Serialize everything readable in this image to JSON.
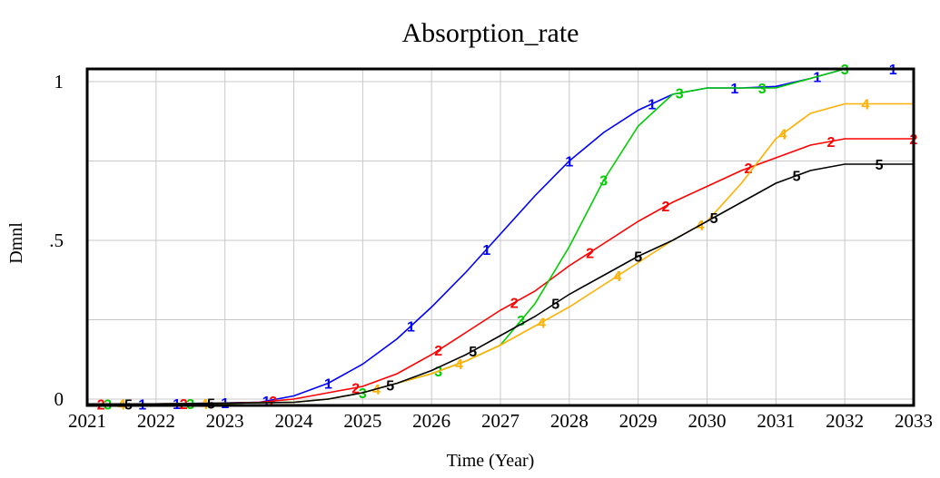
{
  "chart_data": {
    "type": "line",
    "title": "Absorption_rate",
    "xlabel": "Time (Year)",
    "ylabel": "Dmnl",
    "xlim": [
      2021,
      2033
    ],
    "ylim": [
      -0.02,
      1.04
    ],
    "x_ticks": [
      "2021",
      "2022",
      "2023",
      "2024",
      "2025",
      "2026",
      "2027",
      "2028",
      "2029",
      "2030",
      "2031",
      "2032",
      "2033"
    ],
    "y_ticks": [
      {
        "label": "0",
        "value": 0
      },
      {
        "label": ".5",
        "value": 0.5
      },
      {
        "label": "1",
        "value": 1
      }
    ],
    "grid": true,
    "legend": "none",
    "series": [
      {
        "name": "1",
        "color": "#0000ff",
        "x": [
          2021,
          2022,
          2023,
          2023.5,
          2024,
          2024.5,
          2025,
          2025.5,
          2026,
          2026.5,
          2027,
          2027.5,
          2028,
          2028.5,
          2029,
          2029.5,
          2030,
          2030.5,
          2031,
          2031.5,
          2032,
          2032.5,
          2033
        ],
        "y": [
          -0.015,
          -0.015,
          -0.012,
          -0.01,
          0.01,
          0.05,
          0.11,
          0.19,
          0.29,
          0.4,
          0.52,
          0.64,
          0.75,
          0.84,
          0.91,
          0.96,
          0.98,
          0.98,
          0.985,
          1.01,
          1.04,
          1.04,
          1.04
        ],
        "markers": [
          2021.8,
          2022.3,
          2023.0,
          2023.6,
          2024.5,
          2025.7,
          2026.8,
          2028.0,
          2029.2,
          2030.4,
          2031.6,
          2032.7
        ]
      },
      {
        "name": "2",
        "color": "#ff0000",
        "x": [
          2021,
          2022,
          2023,
          2023.5,
          2024,
          2024.5,
          2025,
          2025.5,
          2026,
          2026.5,
          2027,
          2027.5,
          2028,
          2028.5,
          2029,
          2029.5,
          2030,
          2030.5,
          2031,
          2031.5,
          2032,
          2032.5,
          2033
        ],
        "y": [
          -0.015,
          -0.015,
          -0.013,
          -0.01,
          0.0,
          0.02,
          0.04,
          0.08,
          0.14,
          0.21,
          0.28,
          0.34,
          0.42,
          0.49,
          0.56,
          0.62,
          0.67,
          0.72,
          0.76,
          0.8,
          0.82,
          0.82,
          0.82
        ],
        "markers": [
          2021.2,
          2022.4,
          2023.7,
          2024.9,
          2026.1,
          2027.2,
          2028.3,
          2029.4,
          2030.6,
          2031.8,
          2033.0
        ]
      },
      {
        "name": "3",
        "color": "#00cc00",
        "x": [
          2021,
          2022,
          2023,
          2024,
          2024.5,
          2025,
          2025.5,
          2026,
          2026.5,
          2027,
          2027.5,
          2028,
          2028.5,
          2029,
          2029.5,
          2030,
          2030.5,
          2031,
          2031.5,
          2032,
          2032.5,
          2033
        ],
        "y": [
          -0.015,
          -0.015,
          -0.013,
          -0.01,
          0.0,
          0.02,
          0.05,
          0.08,
          0.12,
          0.17,
          0.3,
          0.48,
          0.69,
          0.86,
          0.96,
          0.98,
          0.98,
          0.98,
          1.01,
          1.04,
          1.04,
          1.04
        ],
        "markers": [
          2021.3,
          2022.5,
          2025.0,
          2026.1,
          2027.3,
          2028.5,
          2029.6,
          2030.8,
          2032.0
        ]
      },
      {
        "name": "4",
        "color": "#ffb000",
        "x": [
          2021,
          2022,
          2023,
          2024,
          2024.5,
          2025,
          2025.5,
          2026,
          2026.5,
          2027,
          2027.5,
          2028,
          2028.5,
          2029,
          2029.5,
          2030,
          2030.5,
          2031,
          2031.5,
          2032,
          2032.5,
          2033
        ],
        "y": [
          -0.015,
          -0.015,
          -0.013,
          -0.01,
          0.0,
          0.02,
          0.05,
          0.08,
          0.12,
          0.17,
          0.23,
          0.29,
          0.36,
          0.43,
          0.5,
          0.56,
          0.68,
          0.82,
          0.9,
          0.93,
          0.93,
          0.93
        ],
        "markers": [
          2021.5,
          2022.7,
          2025.2,
          2026.4,
          2027.6,
          2028.7,
          2029.9,
          2031.1,
          2032.3
        ]
      },
      {
        "name": "5",
        "color": "#000000",
        "x": [
          2021,
          2022,
          2023,
          2024,
          2024.5,
          2025,
          2025.5,
          2026,
          2026.5,
          2027,
          2027.5,
          2028,
          2028.5,
          2029,
          2029.5,
          2030,
          2030.5,
          2031,
          2031.5,
          2032,
          2032.5,
          2033
        ],
        "y": [
          -0.015,
          -0.015,
          -0.013,
          -0.01,
          0.0,
          0.02,
          0.05,
          0.09,
          0.14,
          0.2,
          0.26,
          0.33,
          0.39,
          0.45,
          0.5,
          0.56,
          0.62,
          0.68,
          0.72,
          0.74,
          0.74,
          0.74
        ],
        "markers": [
          2021.6,
          2022.8,
          2025.4,
          2026.6,
          2027.8,
          2029.0,
          2030.1,
          2031.3,
          2032.5
        ]
      }
    ]
  }
}
